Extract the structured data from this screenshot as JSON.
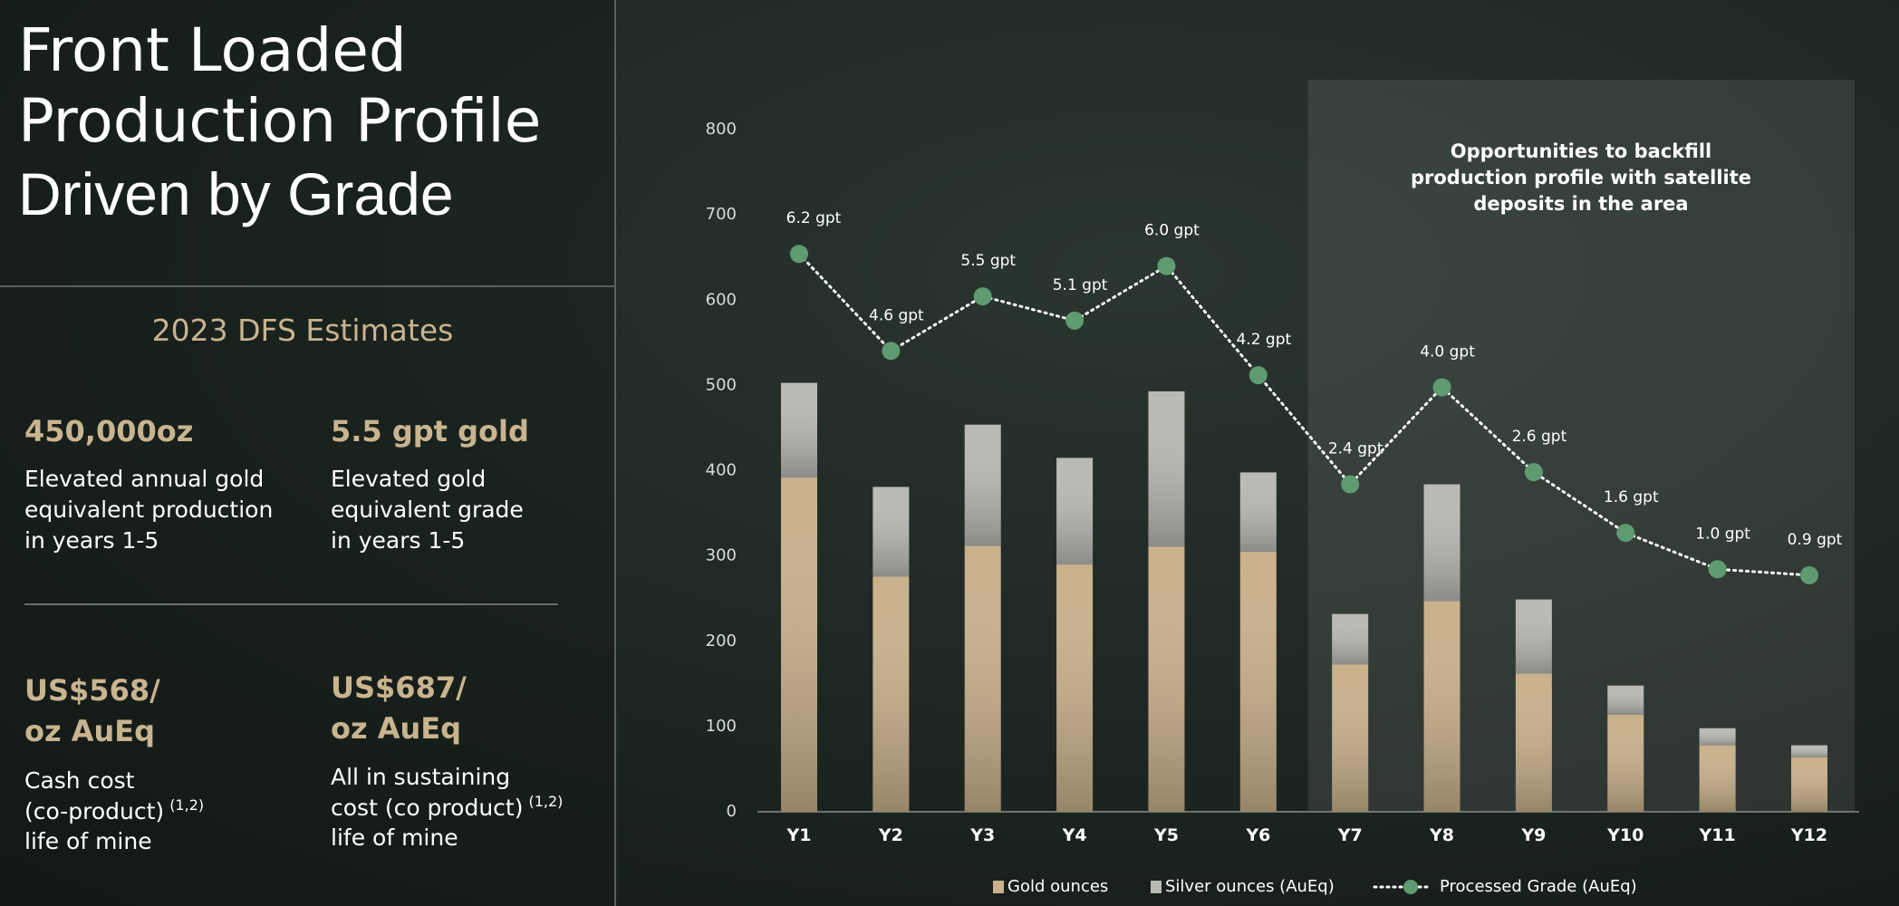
{
  "title": {
    "lines": [
      "Front Loaded",
      "Production Profile"
    ],
    "subline": "Driven by Grade"
  },
  "section": "2023 DFS Estimates",
  "stats": [
    {
      "headline": [
        "450,000oz"
      ],
      "lines": [
        "Elevated annual gold",
        "equivalent production",
        "in years 1-5"
      ]
    },
    {
      "headline": [
        "5.5 gpt gold"
      ],
      "lines": [
        "Elevated gold",
        "equivalent grade",
        "in years 1-5"
      ]
    },
    {
      "headline": [
        "US$568/",
        "oz AuEq"
      ],
      "lines": [
        "Cash cost",
        "(co-product)",
        "life of mine"
      ],
      "note": "(1,2)"
    },
    {
      "headline": [
        "US$687/",
        "oz AuEq"
      ],
      "lines": [
        "All in sustaining",
        "cost (co product)",
        "life of mine"
      ],
      "note": "(1,2)"
    }
  ],
  "chart_data": {
    "type": "bar",
    "stacked": true,
    "categories": [
      "Y1",
      "Y2",
      "Y3",
      "Y4",
      "Y5",
      "Y6",
      "Y7",
      "Y8",
      "Y9",
      "Y10",
      "Y11",
      "Y12"
    ],
    "series": [
      {
        "name": "Gold ounces",
        "color": "#c9b18c",
        "values": [
          392,
          276,
          312,
          290,
          311,
          305,
          173,
          247,
          162,
          114,
          78,
          64
        ]
      },
      {
        "name": "Silver ounces (AuEq)",
        "color": "#b9b9b6",
        "values": [
          111,
          105,
          142,
          125,
          182,
          93,
          59,
          137,
          87,
          34,
          20,
          14
        ]
      },
      {
        "name": "Processed Grade (AuEq)",
        "type": "line",
        "axis": "y2",
        "color": "#5f9a70",
        "values": [
          6.2,
          4.6,
          5.5,
          5.1,
          6.0,
          4.2,
          2.4,
          4.0,
          2.6,
          1.6,
          1.0,
          0.9
        ],
        "value_labels": [
          "6.2 gpt",
          "4.6 gpt",
          "5.5 gpt",
          "5.1 gpt",
          "6.0 gpt",
          "4.2 gpt",
          "2.4 gpt",
          "4.0 gpt",
          "2.6 gpt",
          "1.6 gpt",
          "1.0 gpt",
          "0.9 gpt"
        ]
      }
    ],
    "ylim": [
      0,
      800
    ],
    "yticks": [
      0,
      100,
      200,
      300,
      400,
      500,
      600,
      700,
      800
    ],
    "y2lim": [
      -3,
      8.25
    ],
    "grid": false,
    "legend": "bottom",
    "annotation": [
      "Opportunities to backfill",
      "production profile with satellite",
      "deposits in the area"
    ]
  }
}
